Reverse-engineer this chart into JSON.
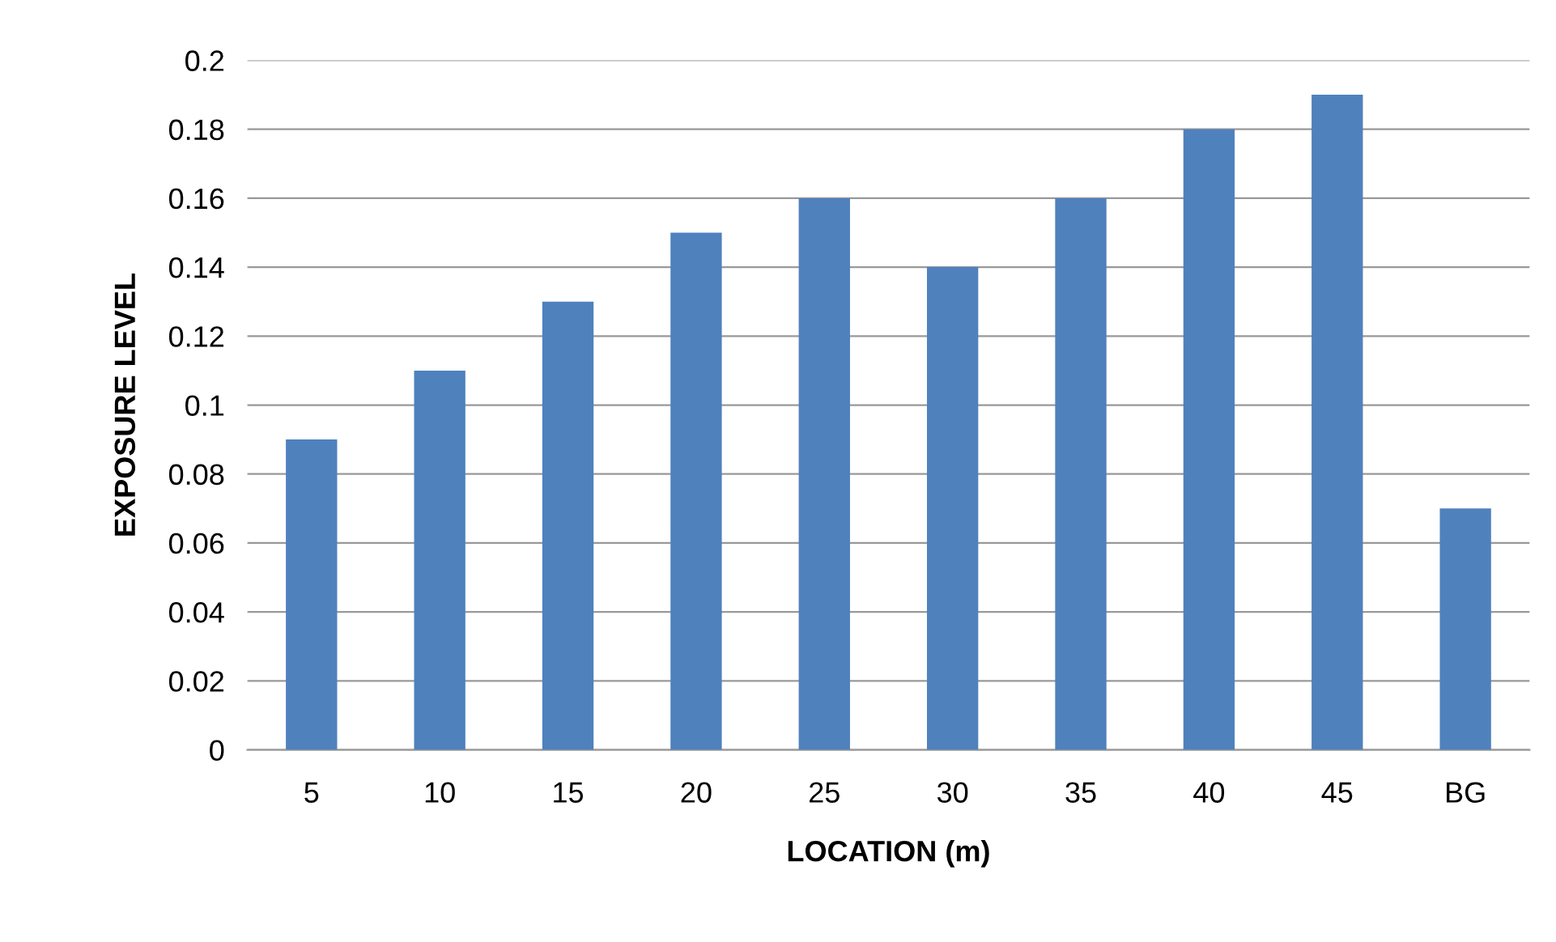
{
  "chart_data": {
    "type": "bar",
    "xlabel": "LOCATION (m)",
    "ylabel": "EXPOSURE LEVEL",
    "categories": [
      "5",
      "10",
      "15",
      "20",
      "25",
      "30",
      "35",
      "40",
      "45",
      "BG"
    ],
    "values": [
      0.09,
      0.11,
      0.13,
      0.15,
      0.16,
      0.14,
      0.16,
      0.18,
      0.19,
      0.07
    ],
    "color": "#4f81bd",
    "ylim": [
      0,
      0.2
    ],
    "yticks": [
      0,
      0.02,
      0.04,
      0.06,
      0.08,
      0.1,
      0.12,
      0.14,
      0.16,
      0.18,
      0.2
    ],
    "grid": "y",
    "legend": false
  }
}
